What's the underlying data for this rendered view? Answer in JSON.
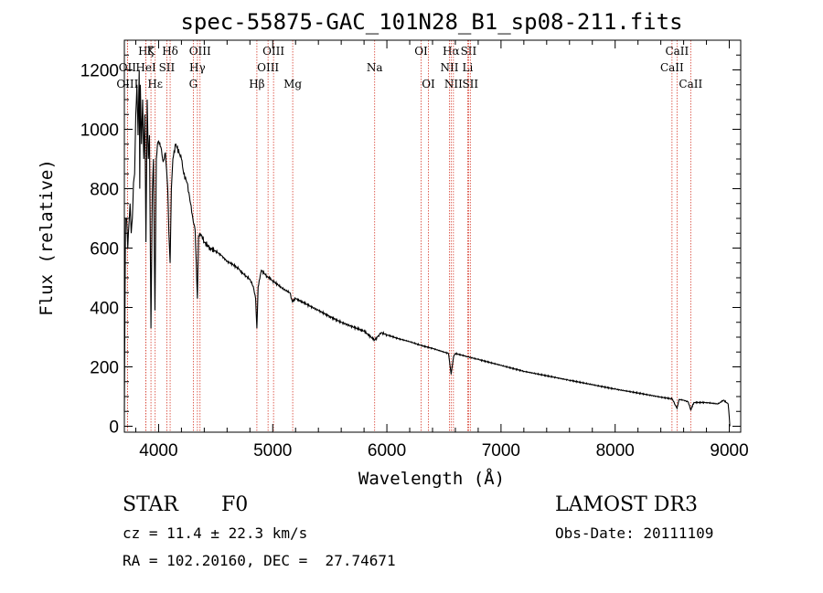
{
  "chart_data": {
    "type": "line",
    "title": "spec-55875-GAC_101N28_B1_sp08-211.fits",
    "xlabel": "Wavelength (Å)",
    "ylabel": "Flux (relative)",
    "xlim": [
      3700,
      9100
    ],
    "ylim": [
      -20,
      1300
    ],
    "xticks": [
      4000,
      5000,
      6000,
      7000,
      8000,
      9000
    ],
    "yticks": [
      0,
      200,
      400,
      600,
      800,
      1000,
      1200
    ],
    "series": [
      {
        "name": "flux",
        "x": [
          3700,
          3710,
          3720,
          3730,
          3740,
          3750,
          3760,
          3770,
          3780,
          3790,
          3800,
          3810,
          3820,
          3830,
          3835,
          3840,
          3850,
          3860,
          3870,
          3880,
          3889,
          3900,
          3910,
          3920,
          3933,
          3945,
          3955,
          3968,
          3980,
          3990,
          4000,
          4020,
          4040,
          4060,
          4080,
          4090,
          4101,
          4112,
          4125,
          4150,
          4180,
          4200,
          4220,
          4250,
          4280,
          4300,
          4320,
          4340,
          4350,
          4360,
          4380,
          4400,
          4450,
          4500,
          4550,
          4600,
          4650,
          4700,
          4750,
          4800,
          4830,
          4850,
          4861,
          4872,
          4900,
          4950,
          5000,
          5050,
          5100,
          5150,
          5172,
          5200,
          5300,
          5400,
          5500,
          5600,
          5700,
          5800,
          5893,
          5950,
          6000,
          6100,
          6200,
          6300,
          6400,
          6500,
          6540,
          6563,
          6585,
          6600,
          6700,
          6800,
          7000,
          7200,
          7400,
          7600,
          7800,
          8000,
          8200,
          8400,
          8500,
          8542,
          8560,
          8600,
          8640,
          8662,
          8690,
          8700,
          8800,
          8900,
          8950,
          8990,
          9000,
          9005
        ],
        "y": [
          50,
          700,
          700,
          600,
          680,
          750,
          650,
          700,
          820,
          850,
          1050,
          1150,
          980,
          1200,
          800,
          1150,
          950,
          1100,
          900,
          1050,
          620,
          1100,
          900,
          980,
          330,
          780,
          900,
          390,
          900,
          950,
          960,
          940,
          890,
          920,
          800,
          650,
          550,
          800,
          900,
          950,
          920,
          900,
          850,
          820,
          750,
          700,
          660,
          430,
          640,
          650,
          640,
          620,
          600,
          590,
          575,
          555,
          545,
          530,
          510,
          495,
          470,
          430,
          330,
          470,
          525,
          505,
          490,
          475,
          460,
          450,
          420,
          430,
          410,
          390,
          370,
          350,
          335,
          320,
          290,
          315,
          308,
          295,
          285,
          272,
          262,
          250,
          245,
          175,
          235,
          245,
          235,
          225,
          205,
          185,
          170,
          155,
          140,
          125,
          112,
          98,
          92,
          60,
          90,
          88,
          82,
          55,
          80,
          80,
          80,
          75,
          88,
          75,
          30,
          0
        ]
      }
    ],
    "lines": [
      {
        "name": "Hζ",
        "wl": 3889,
        "row": 0
      },
      {
        "name": "K",
        "wl": 3933,
        "row": 0
      },
      {
        "name": "Hδ",
        "wl": 4101,
        "row": 0
      },
      {
        "name": "OIII",
        "wl": 4363,
        "row": 0
      },
      {
        "name": "OIII",
        "wl": 5007,
        "row": 0
      },
      {
        "name": "OI",
        "wl": 6300,
        "row": 0
      },
      {
        "name": "Hα",
        "wl": 6563,
        "row": 0
      },
      {
        "name": "SII",
        "wl": 6716,
        "row": 0
      },
      {
        "name": "CaII",
        "wl": 8542,
        "row": 0
      },
      {
        "name": "OII",
        "wl": 3727,
        "row": 1
      },
      {
        "name": "HeI",
        "wl": 3889,
        "row": 1
      },
      {
        "name": "SII",
        "wl": 4072,
        "row": 1
      },
      {
        "name": "Hγ",
        "wl": 4340,
        "row": 1
      },
      {
        "name": "OIII",
        "wl": 4959,
        "row": 1
      },
      {
        "name": "Na",
        "wl": 5893,
        "row": 1
      },
      {
        "name": "NII",
        "wl": 6548,
        "row": 1
      },
      {
        "name": "Li",
        "wl": 6708,
        "row": 1
      },
      {
        "name": "CaII",
        "wl": 8498,
        "row": 1
      },
      {
        "name": "OIII",
        "wl": 3727,
        "row": 2
      },
      {
        "name": "Hε",
        "wl": 3970,
        "row": 2
      },
      {
        "name": "G",
        "wl": 4304,
        "row": 2
      },
      {
        "name": "Hβ",
        "wl": 4861,
        "row": 2
      },
      {
        "name": "Mg",
        "wl": 5175,
        "row": 2
      },
      {
        "name": "OI",
        "wl": 6364,
        "row": 2
      },
      {
        "name": "NII",
        "wl": 6583,
        "row": 2
      },
      {
        "name": "SII",
        "wl": 6731,
        "row": 2
      },
      {
        "name": "CaII",
        "wl": 8662,
        "row": 2
      }
    ]
  },
  "info": {
    "object_class": "STAR",
    "subclass": "F0",
    "survey": "LAMOST DR3",
    "redshift": "cz = 11.4 ± 22.3 km/s",
    "obs_date": "Obs-Date: 20111109",
    "coords": "RA = 102.20160, DEC =  27.74671"
  }
}
